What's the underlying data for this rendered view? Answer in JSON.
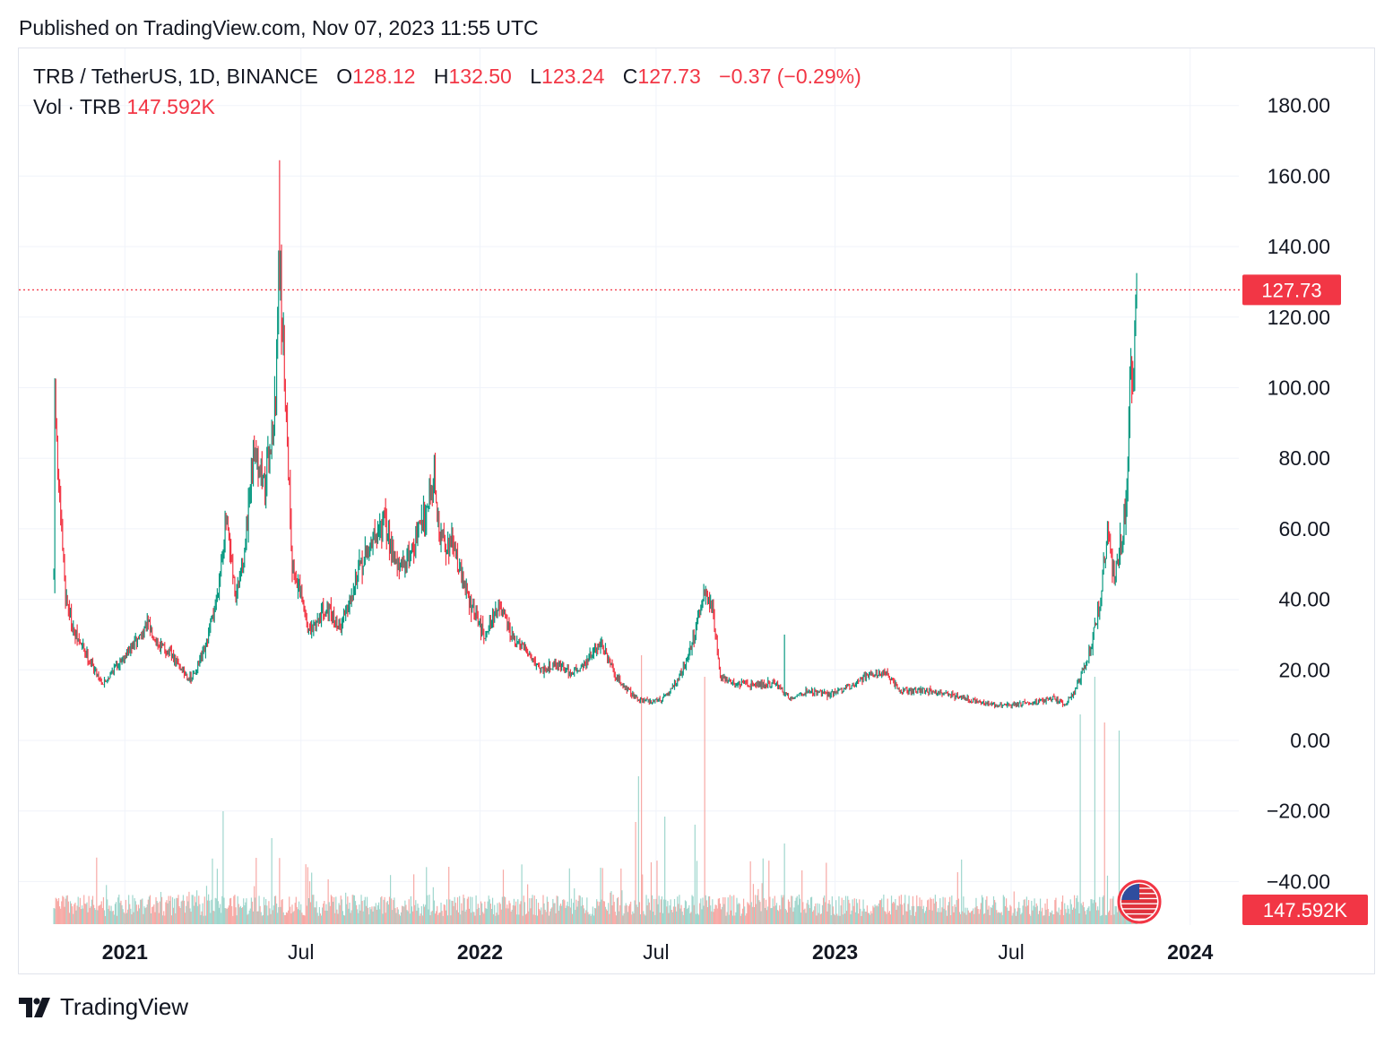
{
  "header": {
    "published": "Published on TradingView.com, Nov 07, 2023 11:55 UTC"
  },
  "legend": {
    "symbol": "TRB / TetherUS, 1D, BINANCE",
    "open_label": "O",
    "open": "128.12",
    "high_label": "H",
    "high": "132.50",
    "low_label": "L",
    "low": "123.24",
    "close_label": "C",
    "close": "127.73",
    "change": "−0.37 (−0.29%)",
    "vol_label": "Vol · TRB",
    "vol_value": "147.592K"
  },
  "badges": {
    "last_price": "127.73",
    "last_volume": "147.592K"
  },
  "footer": {
    "brand": "TradingView"
  },
  "colors": {
    "up": "#089981",
    "down": "#f23645",
    "up_vol": "#9fd6cd",
    "down_vol": "#f7a9a5",
    "grid": "#f0f3fa"
  },
  "icons": {
    "flag": "us-flag-icon",
    "logo": "tradingview-logo-icon"
  },
  "chart_data": {
    "type": "candlestick",
    "interval": "1D",
    "y_axis": {
      "ticks": [
        180,
        160,
        140,
        120,
        100,
        80,
        60,
        40,
        20,
        0,
        -20,
        -40
      ],
      "tick_labels": [
        "180.00",
        "160.00",
        "140.00",
        "120.00",
        "100.00",
        "80.00",
        "60.00",
        "40.00",
        "20.00",
        "0.00",
        "−20.00",
        "−40.00"
      ],
      "range": [
        -52,
        190
      ]
    },
    "x_axis": {
      "ticks": [
        "2021-01-01",
        "2021-07-01",
        "2022-01-01",
        "2022-07-01",
        "2023-01-01",
        "2023-07-01",
        "2024-01-01"
      ],
      "tick_labels": [
        "2021",
        "Jul",
        "2022",
        "Jul",
        "2023",
        "Jul",
        "2024"
      ],
      "tick_bold": [
        true,
        false,
        true,
        false,
        true,
        false,
        true
      ],
      "range": [
        "2020-09-14",
        "2024-02-20"
      ]
    },
    "last_price_line": 127.73,
    "close_anchors": [
      [
        "2020-10-20",
        45
      ],
      [
        "2020-10-21",
        100
      ],
      [
        "2020-10-24",
        75
      ],
      [
        "2020-11-01",
        42
      ],
      [
        "2020-11-10",
        30
      ],
      [
        "2020-11-20",
        26
      ],
      [
        "2020-12-01",
        20
      ],
      [
        "2020-12-10",
        16
      ],
      [
        "2020-12-25",
        22
      ],
      [
        "2021-01-10",
        27
      ],
      [
        "2021-01-25",
        33
      ],
      [
        "2021-02-05",
        27
      ],
      [
        "2021-02-15",
        25
      ],
      [
        "2021-03-01",
        20
      ],
      [
        "2021-03-10",
        17
      ],
      [
        "2021-03-25",
        26
      ],
      [
        "2021-04-05",
        40
      ],
      [
        "2021-04-15",
        62
      ],
      [
        "2021-04-25",
        40
      ],
      [
        "2021-05-05",
        55
      ],
      [
        "2021-05-15",
        85
      ],
      [
        "2021-05-25",
        72
      ],
      [
        "2021-06-05",
        95
      ],
      [
        "2021-06-08",
        140
      ],
      [
        "2021-06-10",
        128
      ],
      [
        "2021-06-15",
        100
      ],
      [
        "2021-06-22",
        50
      ],
      [
        "2021-06-30",
        42
      ],
      [
        "2021-07-10",
        30
      ],
      [
        "2021-07-25",
        38
      ],
      [
        "2021-08-10",
        32
      ],
      [
        "2021-08-25",
        45
      ],
      [
        "2021-09-10",
        55
      ],
      [
        "2021-09-25",
        62
      ],
      [
        "2021-10-10",
        48
      ],
      [
        "2021-10-25",
        55
      ],
      [
        "2021-11-05",
        65
      ],
      [
        "2021-11-15",
        75
      ],
      [
        "2021-11-20",
        58
      ],
      [
        "2021-12-05",
        55
      ],
      [
        "2021-12-20",
        40
      ],
      [
        "2022-01-05",
        30
      ],
      [
        "2022-01-20",
        38
      ],
      [
        "2022-02-05",
        28
      ],
      [
        "2022-02-20",
        25
      ],
      [
        "2022-03-05",
        20
      ],
      [
        "2022-03-20",
        22
      ],
      [
        "2022-04-05",
        19
      ],
      [
        "2022-04-20",
        22
      ],
      [
        "2022-05-05",
        28
      ],
      [
        "2022-05-20",
        18
      ],
      [
        "2022-06-10",
        12
      ],
      [
        "2022-06-25",
        11
      ],
      [
        "2022-07-10",
        12
      ],
      [
        "2022-07-25",
        18
      ],
      [
        "2022-08-10",
        30
      ],
      [
        "2022-08-20",
        42
      ],
      [
        "2022-08-28",
        38
      ],
      [
        "2022-09-05",
        18
      ],
      [
        "2022-09-20",
        16
      ],
      [
        "2022-10-10",
        16
      ],
      [
        "2022-11-01",
        16
      ],
      [
        "2022-11-15",
        12
      ],
      [
        "2022-12-05",
        14
      ],
      [
        "2022-12-25",
        13
      ],
      [
        "2023-01-15",
        15
      ],
      [
        "2023-02-05",
        19
      ],
      [
        "2023-02-20",
        19
      ],
      [
        "2023-03-10",
        14
      ],
      [
        "2023-04-05",
        14
      ],
      [
        "2023-05-01",
        13
      ],
      [
        "2023-05-25",
        11
      ],
      [
        "2023-06-15",
        10
      ],
      [
        "2023-07-05",
        10
      ],
      [
        "2023-07-25",
        11
      ],
      [
        "2023-08-15",
        12
      ],
      [
        "2023-08-25",
        10
      ],
      [
        "2023-09-05",
        14
      ],
      [
        "2023-09-20",
        25
      ],
      [
        "2023-10-01",
        40
      ],
      [
        "2023-10-08",
        60
      ],
      [
        "2023-10-15",
        45
      ],
      [
        "2023-10-22",
        56
      ],
      [
        "2023-10-28",
        70
      ],
      [
        "2023-11-01",
        115
      ],
      [
        "2023-11-03",
        100
      ],
      [
        "2023-11-05",
        120
      ],
      [
        "2023-11-07",
        127.73
      ]
    ],
    "highlight_wicks": [
      {
        "date": "2021-06-09",
        "high": 164.5
      },
      {
        "date": "2023-11-07",
        "high": 132.5
      },
      {
        "date": "2022-11-10",
        "high": 30
      }
    ],
    "volume_spikes": [
      [
        "2021-04-12",
        0.42
      ],
      [
        "2021-06-01",
        0.32
      ],
      [
        "2022-06-10",
        0.38
      ],
      [
        "2022-06-13",
        0.55
      ],
      [
        "2022-06-16",
        1.0
      ],
      [
        "2022-07-10",
        0.4
      ],
      [
        "2022-08-10",
        0.37
      ],
      [
        "2022-08-20",
        0.92
      ],
      [
        "2022-11-10",
        0.3
      ],
      [
        "2023-09-10",
        0.78
      ],
      [
        "2023-09-25",
        0.92
      ],
      [
        "2023-10-05",
        0.75
      ],
      [
        "2023-10-20",
        0.72
      ]
    ]
  }
}
